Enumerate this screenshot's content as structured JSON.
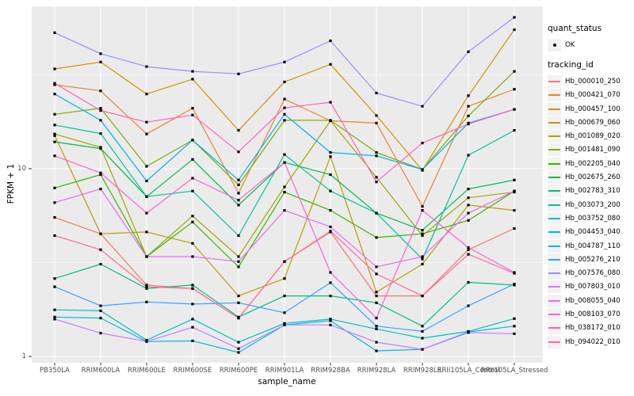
{
  "chart_data": {
    "type": "line",
    "title": "",
    "xlabel": "sample_name",
    "ylabel": "FPKM + 1",
    "y_scale": "log10",
    "y_tick_labels": [
      "10",
      "1"
    ],
    "y_tick_values": [
      10,
      1
    ],
    "y_minor_gridlines": [
      31.62,
      3.162
    ],
    "ylim": [
      0.95,
      76
    ],
    "legend_position": "right",
    "panel_background": "#EBEBEB",
    "gridline_color": "#FFFFFF",
    "point_color": "#000000",
    "categories": [
      "PB350LA",
      "RRIM600LA",
      "RRIM600LE",
      "RRIM600SE",
      "RRIM600PE",
      "RRIM901LA",
      "RRIM928BA",
      "RRIM928LA",
      "RRIM928LE",
      "RRII105LA_Control",
      "RRII105LA_Stressed"
    ],
    "series": [
      {
        "tracking_id": "Hb_000010_250",
        "quant_status": "OK",
        "color": "#F8766D",
        "values": [
          5.5,
          4.5,
          2.4,
          2.3,
          1.6,
          3.2,
          4.6,
          2.1,
          2.1,
          3.7,
          4.8
        ]
      },
      {
        "tracking_id": "Hb_000421_070",
        "quant_status": "OK",
        "color": "#EA8331",
        "values": [
          28,
          26,
          15.3,
          21,
          7.4,
          23.5,
          18,
          17.5,
          6.3,
          21.5,
          26.5
        ]
      },
      {
        "tracking_id": "Hb_000457_100",
        "quant_status": "OK",
        "color": "#D89000",
        "values": [
          34,
          37,
          25,
          30,
          16,
          29,
          36,
          19.2,
          9.8,
          24.5,
          55
        ]
      },
      {
        "tracking_id": "Hb_000679_060",
        "quant_status": "OK",
        "color": "#C09B00",
        "values": [
          15,
          4.5,
          4.6,
          4.0,
          2.1,
          2.6,
          11.6,
          2.2,
          3.1,
          6.4,
          6.0
        ]
      },
      {
        "tracking_id": "Hb_001089_020",
        "quant_status": "OK",
        "color": "#A3A500",
        "values": [
          15.3,
          13,
          3.4,
          5.6,
          3.4,
          8.0,
          18,
          9.0,
          4.4,
          7.0,
          7.5
        ]
      },
      {
        "tracking_id": "Hb_001481_090",
        "quant_status": "OK",
        "color": "#7CAE00",
        "values": [
          19.5,
          21,
          10.3,
          14.2,
          8.2,
          18.1,
          18.1,
          12.2,
          9.9,
          19.1,
          33
        ]
      },
      {
        "tracking_id": "Hb_002205_040",
        "quant_status": "OK",
        "color": "#39B600",
        "values": [
          7.9,
          9.3,
          3.4,
          5.2,
          3.0,
          7.5,
          6.0,
          4.3,
          4.5,
          5.3,
          7.6
        ]
      },
      {
        "tracking_id": "Hb_002675_260",
        "quant_status": "OK",
        "color": "#00BB4E",
        "values": [
          13.9,
          12.8,
          7.1,
          11.2,
          6.4,
          10.8,
          9.3,
          5.8,
          4.7,
          7.8,
          8.7
        ]
      },
      {
        "tracking_id": "Hb_002783_310",
        "quant_status": "OK",
        "color": "#00BF7D",
        "values": [
          2.6,
          3.1,
          2.3,
          2.4,
          1.62,
          2.1,
          2.1,
          1.93,
          1.45,
          2.48,
          2.4
        ]
      },
      {
        "tracking_id": "Hb_003073_200",
        "quant_status": "OK",
        "color": "#00C1A3",
        "values": [
          17.1,
          15.4,
          7.1,
          7.6,
          4.4,
          11.9,
          7.6,
          5.8,
          3.3,
          11.8,
          16
        ]
      },
      {
        "tracking_id": "Hb_003752_080",
        "quant_status": "OK",
        "color": "#00BFC4",
        "values": [
          1.77,
          1.75,
          1.22,
          1.58,
          1.19,
          1.5,
          1.58,
          1.4,
          1.25,
          1.36,
          1.59
        ]
      },
      {
        "tracking_id": "Hb_004453_040",
        "quant_status": "OK",
        "color": "#00BAE0",
        "values": [
          1.62,
          1.6,
          1.2,
          1.21,
          1.05,
          1.47,
          1.55,
          1.07,
          1.09,
          1.35,
          1.45
        ]
      },
      {
        "tracking_id": "Hb_004787_110",
        "quant_status": "OK",
        "color": "#00B0F6",
        "values": [
          25,
          18.1,
          8.6,
          14.2,
          8.7,
          19.5,
          12.2,
          11.7,
          9.9,
          17.5,
          20.7
        ]
      },
      {
        "tracking_id": "Hb_005276_210",
        "quant_status": "OK",
        "color": "#35A2FF",
        "values": [
          2.35,
          1.86,
          1.95,
          1.9,
          1.93,
          1.71,
          2.47,
          1.45,
          1.36,
          1.86,
          2.43
        ]
      },
      {
        "tracking_id": "Hb_007576_080",
        "quant_status": "OK",
        "color": "#9590FF",
        "values": [
          53,
          41,
          35,
          33,
          32,
          37,
          48,
          25.3,
          21.5,
          42,
          64
        ]
      },
      {
        "tracking_id": "Hb_007803_010",
        "quant_status": "OK",
        "color": "#C77CFF",
        "values": [
          1.58,
          1.33,
          1.2,
          1.43,
          1.1,
          1.47,
          1.47,
          1.19,
          1.09,
          1.34,
          1.32
        ]
      },
      {
        "tracking_id": "Hb_008055_040",
        "quant_status": "OK",
        "color": "#E76BF3",
        "values": [
          6.6,
          7.8,
          3.4,
          3.4,
          3.2,
          6.0,
          4.9,
          3.0,
          3.4,
          5.8,
          7.6
        ]
      },
      {
        "tracking_id": "Hb_008103_070",
        "quant_status": "OK",
        "color": "#FA62DB",
        "values": [
          11.7,
          9.5,
          5.8,
          8.9,
          6.8,
          10.8,
          2.8,
          1.6,
          6.0,
          3.8,
          2.8
        ]
      },
      {
        "tracking_id": "Hb_038172_010",
        "quant_status": "OK",
        "color": "#FF62BC",
        "values": [
          28.5,
          20.4,
          17.7,
          19.3,
          12.3,
          21.1,
          22.6,
          8.5,
          13.7,
          17.3,
          20.7
        ]
      },
      {
        "tracking_id": "Hb_094022_010",
        "quant_status": "OK",
        "color": "#FF6A98",
        "values": [
          4.4,
          3.7,
          2.35,
          2.3,
          1.6,
          3.2,
          4.65,
          2.75,
          2.1,
          3.5,
          2.77
        ]
      }
    ]
  },
  "axes": {
    "y_title": "FPKM + 1",
    "x_title": "sample_name"
  },
  "legend": {
    "quant_status": {
      "title": "quant_status",
      "items": [
        "OK"
      ]
    },
    "tracking_id": {
      "title": "tracking_id"
    }
  }
}
